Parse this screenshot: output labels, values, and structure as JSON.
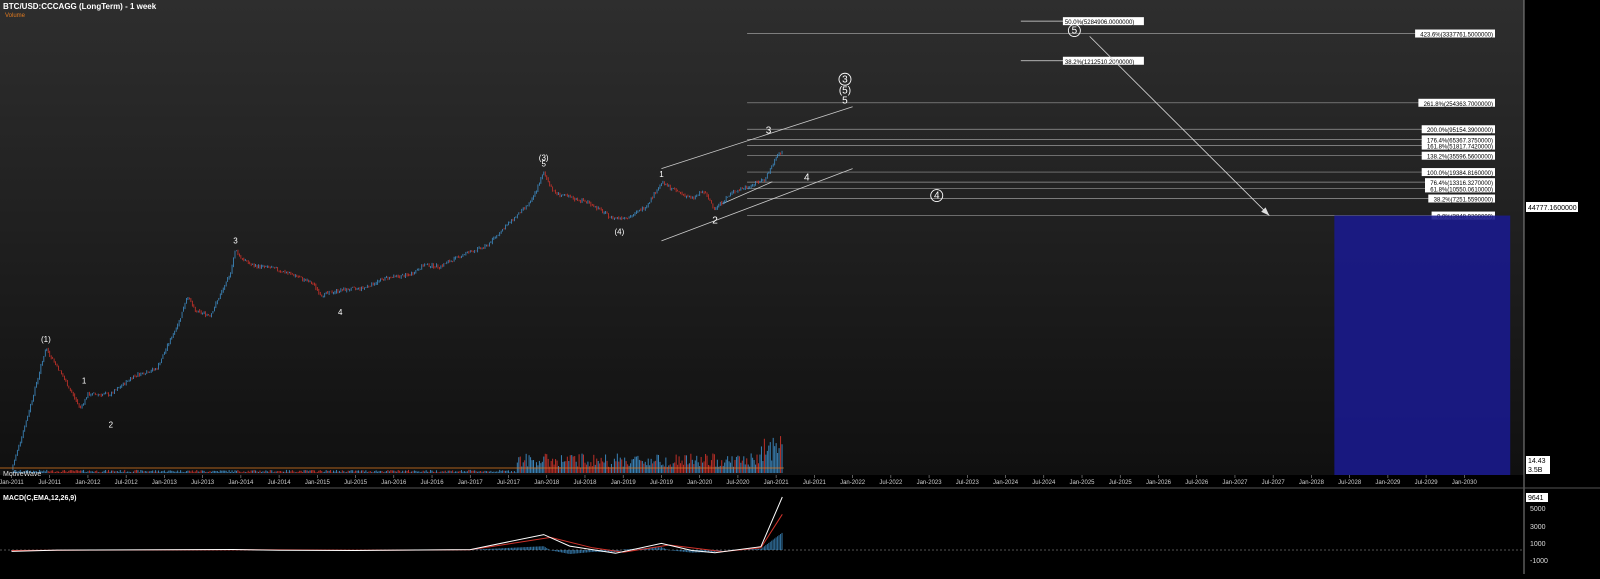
{
  "header": {
    "title": "BTC/USD:CCCAGG (LongTerm) - 1 week",
    "subtitle": "Volume"
  },
  "watermark": "MotiveWave",
  "macd": {
    "label": "MACD(C,EMA,12,26,9)",
    "last_value": "9641",
    "axis_ticks": [
      "5000",
      "3000",
      "1000",
      "-1000"
    ]
  },
  "price_axis": {
    "last_price": "44777.1600000",
    "volume_tag": "14.43",
    "volume_tag2": "3.5B"
  },
  "colors": {
    "background": "#000000",
    "chart_gradient_top": "#303030",
    "up": "#3f8fc9",
    "down": "#d0332b",
    "fib_line": "#9a9a9a",
    "label_box": "#ffffff",
    "target_box": "#1a1a8c",
    "macd_line": "#ffffff",
    "signal_line": "#d0332b"
  },
  "chart_data": {
    "type": "candlestick",
    "title": "BTC/USD:CCCAGG (LongTerm) - 1 week",
    "xlabel": "",
    "ylabel": "",
    "x_ticks": [
      "Jan-2011",
      "Jul-2011",
      "Jan-2012",
      "Jul-2012",
      "Jan-2013",
      "Jul-2013",
      "Jan-2014",
      "Jul-2014",
      "Jan-2015",
      "Jul-2015",
      "Jan-2016",
      "Jul-2016",
      "Jan-2017",
      "Jul-2017",
      "Jan-2018",
      "Jul-2018",
      "Jan-2019",
      "Jul-2019",
      "Jan-2020",
      "Jul-2020",
      "Jan-2021",
      "Jul-2021",
      "Jan-2022",
      "Jul-2022",
      "Jan-2023",
      "Jul-2023",
      "Jan-2024",
      "Jul-2024",
      "Jan-2025",
      "Jul-2025",
      "Jan-2026",
      "Jul-2026",
      "Jan-2027",
      "Jul-2027",
      "Jan-2028",
      "Jul-2028",
      "Jan-2029",
      "Jul-2029",
      "Jan-2030"
    ],
    "price_path": [
      [
        2011.0,
        0.3
      ],
      [
        2011.2,
        2
      ],
      [
        2011.45,
        28
      ],
      [
        2011.6,
        14
      ],
      [
        2011.9,
        3
      ],
      [
        2012.0,
        5
      ],
      [
        2012.3,
        5
      ],
      [
        2012.6,
        10
      ],
      [
        2012.9,
        13
      ],
      [
        2013.2,
        80
      ],
      [
        2013.3,
        200
      ],
      [
        2013.4,
        110
      ],
      [
        2013.6,
        95
      ],
      [
        2013.85,
        400
      ],
      [
        2013.93,
        1100
      ],
      [
        2014.0,
        800
      ],
      [
        2014.15,
        600
      ],
      [
        2014.4,
        550
      ],
      [
        2014.7,
        420
      ],
      [
        2014.95,
        300
      ],
      [
        2015.05,
        200
      ],
      [
        2015.3,
        240
      ],
      [
        2015.6,
        260
      ],
      [
        2015.9,
        380
      ],
      [
        2016.2,
        420
      ],
      [
        2016.4,
        620
      ],
      [
        2016.6,
        580
      ],
      [
        2016.95,
        960
      ],
      [
        2017.2,
        1200
      ],
      [
        2017.45,
        2500
      ],
      [
        2017.65,
        4300
      ],
      [
        2017.8,
        6500
      ],
      [
        2017.96,
        19000
      ],
      [
        2018.1,
        9000
      ],
      [
        2018.3,
        7500
      ],
      [
        2018.55,
        6300
      ],
      [
        2018.85,
        3500
      ],
      [
        2019.1,
        3700
      ],
      [
        2019.3,
        5500
      ],
      [
        2019.5,
        13000
      ],
      [
        2019.7,
        9500
      ],
      [
        2019.9,
        7200
      ],
      [
        2020.05,
        9500
      ],
      [
        2020.2,
        5000
      ],
      [
        2020.45,
        9500
      ],
      [
        2020.65,
        11500
      ],
      [
        2020.85,
        15000
      ],
      [
        2020.98,
        29000
      ],
      [
        2021.04,
        40000
      ],
      [
        2021.06,
        36000
      ],
      [
        2021.08,
        44777
      ]
    ],
    "fib_levels": [
      {
        "label": "0.0%(3848.9200000)",
        "value": 3848.92
      },
      {
        "label": "38.2%(7251.5590000)",
        "value": 7251.559
      },
      {
        "label": "61.8%(10550.0610000)",
        "value": 10550.061
      },
      {
        "label": "76.4%(13316.3270000)",
        "value": 13316.327
      },
      {
        "label": "100.0%(19384.8160000)",
        "value": 19384.816
      },
      {
        "label": "138.2%(35596.5600000)",
        "value": 35596.56
      },
      {
        "label": "161.8%(51817.7420000)",
        "value": 51817.742
      },
      {
        "label": "176.4%(65367.3750000)",
        "value": 65367.375
      },
      {
        "label": "200.0%(95154.3900000)",
        "value": 95154.39
      },
      {
        "label": "261.8%(254363.7000000)",
        "value": 254363.7
      },
      {
        "label": "423.6%(3337761.5000000)",
        "value": 3337761.5
      }
    ],
    "retrace_levels": [
      {
        "label": "50.0%(5284906.0000000)",
        "value": 5284906
      },
      {
        "label": "38.2%(1212510.2000000)",
        "value": 1212510.2
      }
    ],
    "wave_labels": [
      {
        "text": "(1)",
        "x": 2011.45,
        "y": 28
      },
      {
        "text": "1",
        "x": 2011.95,
        "y": 6
      },
      {
        "text": "2",
        "x": 2012.3,
        "y": 2.3
      },
      {
        "text": "3",
        "x": 2013.93,
        "y": 1100
      },
      {
        "text": "4",
        "x": 2015.3,
        "y": 150
      },
      {
        "text": "(3)",
        "x": 2017.96,
        "y": 19000
      },
      {
        "text": "5",
        "x": 2017.96,
        "y": 19000
      },
      {
        "text": "(4)",
        "x": 2018.95,
        "y": 3000
      },
      {
        "text": "1",
        "x": 2019.5,
        "y": 13000
      },
      {
        "text": "2",
        "x": 2020.2,
        "y": 4500
      },
      {
        "text": "3",
        "x": 2020.9,
        "y": 65000
      },
      {
        "text": "4",
        "x": 2021.4,
        "y": 22000
      },
      {
        "text": "5",
        "x": 2021.9,
        "y": 200000
      },
      {
        "text": "(5)",
        "x": 2021.9,
        "y": 200000
      },
      {
        "text": "3",
        "x": 2021.9,
        "y": 200000
      },
      {
        "text": "4",
        "x": 2023.1,
        "y": 7251
      },
      {
        "text": "5",
        "x": 2024.9,
        "y": 3337761
      }
    ],
    "target_arrow": {
      "from": [
        2025.1,
        3000000
      ],
      "to": [
        2027.45,
        3848
      ]
    },
    "target_zone": {
      "x": [
        2028.3,
        2030.6
      ],
      "y": [
        0.3,
        3848
      ]
    },
    "macd": {
      "series": [
        {
          "name": "MACD",
          "values": [
            [
              2011.0,
              -250
            ],
            [
              2011.6,
              -20
            ],
            [
              2013.9,
              100
            ],
            [
              2014.5,
              -50
            ],
            [
              2015.5,
              -100
            ],
            [
              2017.0,
              80
            ],
            [
              2017.96,
              2800
            ],
            [
              2018.3,
              700
            ],
            [
              2018.9,
              -600
            ],
            [
              2019.5,
              1200
            ],
            [
              2019.9,
              -100
            ],
            [
              2020.2,
              -500
            ],
            [
              2020.8,
              600
            ],
            [
              2021.08,
              9641
            ]
          ]
        },
        {
          "name": "Signal",
          "values": [
            [
              2011.0,
              -100
            ],
            [
              2012.0,
              -20
            ],
            [
              2014.0,
              60
            ],
            [
              2015.5,
              -60
            ],
            [
              2017.0,
              40
            ],
            [
              2018.05,
              2300
            ],
            [
              2018.6,
              400
            ],
            [
              2019.0,
              -400
            ],
            [
              2019.6,
              900
            ],
            [
              2020.3,
              -300
            ],
            [
              2020.8,
              400
            ],
            [
              2021.08,
              6500
            ]
          ]
        }
      ],
      "ylim": [
        -2000,
        10000
      ]
    }
  }
}
